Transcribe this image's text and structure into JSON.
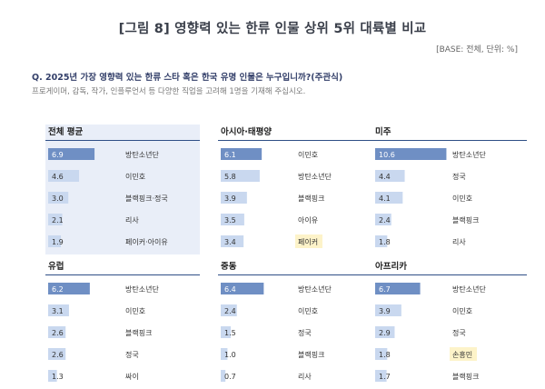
{
  "header": {
    "title": "[그림 8] 영향력 있는 한류 인물 상위 5위 대륙별 비교",
    "base_note": "[BASE: 전체, 단위: %]"
  },
  "question": {
    "text": "Q. 2025년 가장 영향력 있는 한류 스타 혹은 한국 유명 인물은 누구입니까?(주관식)",
    "subtext": "프로게이머, 감독, 작가, 인플루언서 등 다양한 직업을 고려해 1명을 기재해 주십시오."
  },
  "colors": {
    "bar_dark": "#6f8fc4",
    "bar_light": "#c9d8ef",
    "highlight": "#fdf3c9",
    "panel_shade": "#e9eef8",
    "header_rule": "#2f4f86"
  },
  "chart_data": [
    {
      "type": "bar",
      "title": "전체 평균",
      "categories": [
        "방탄소년단",
        "이민호",
        "블랙핑크·정국",
        "리사",
        "페이커·아이유"
      ],
      "values": [
        6.9,
        4.6,
        3.0,
        2.1,
        1.9
      ],
      "value_labels": [
        "6.9",
        "4.6",
        "3.0",
        "2.1",
        "1.9"
      ],
      "highlight": [
        false,
        false,
        false,
        false,
        false
      ]
    },
    {
      "type": "bar",
      "title": "아시아·태평양",
      "categories": [
        "이민호",
        "방탄소년단",
        "블랙핑크",
        "아이유",
        "페이커"
      ],
      "values": [
        6.1,
        5.8,
        3.9,
        3.5,
        3.4
      ],
      "value_labels": [
        "6.1",
        "5.8",
        "3.9",
        "3.5",
        "3.4"
      ],
      "highlight": [
        false,
        false,
        false,
        false,
        true
      ]
    },
    {
      "type": "bar",
      "title": "미주",
      "categories": [
        "방탄소년단",
        "정국",
        "이민호",
        "블랙핑크",
        "리사"
      ],
      "values": [
        10.6,
        4.4,
        4.1,
        2.4,
        1.8
      ],
      "value_labels": [
        "10.6",
        "4.4",
        "4.1",
        "2.4",
        "1.8"
      ],
      "highlight": [
        false,
        false,
        false,
        false,
        false
      ]
    },
    {
      "type": "bar",
      "title": "유럽",
      "categories": [
        "방탄소년단",
        "이민호",
        "블랙핑크",
        "정국",
        "싸이"
      ],
      "values": [
        6.2,
        3.1,
        2.6,
        2.6,
        1.3
      ],
      "value_labels": [
        "6.2",
        "3.1",
        "2.6",
        "2.6",
        "1.3"
      ],
      "highlight": [
        false,
        false,
        false,
        false,
        false
      ]
    },
    {
      "type": "bar",
      "title": "중동",
      "categories": [
        "방탄소년단",
        "이민호",
        "정국",
        "블랙핑크",
        "리사"
      ],
      "values": [
        6.4,
        2.4,
        1.5,
        1.0,
        0.7
      ],
      "value_labels": [
        "6.4",
        "2.4",
        "1.5",
        "1.0",
        "0.7"
      ],
      "highlight": [
        false,
        false,
        false,
        false,
        false
      ]
    },
    {
      "type": "bar",
      "title": "아프리카",
      "categories": [
        "방탄소년단",
        "이민호",
        "정국",
        "손흥민",
        "블랙핑크"
      ],
      "values": [
        6.7,
        3.9,
        2.9,
        1.8,
        1.7
      ],
      "value_labels": [
        "6.7",
        "3.9",
        "2.9",
        "1.8",
        "1.7"
      ],
      "highlight": [
        false,
        false,
        false,
        true,
        false
      ]
    }
  ]
}
